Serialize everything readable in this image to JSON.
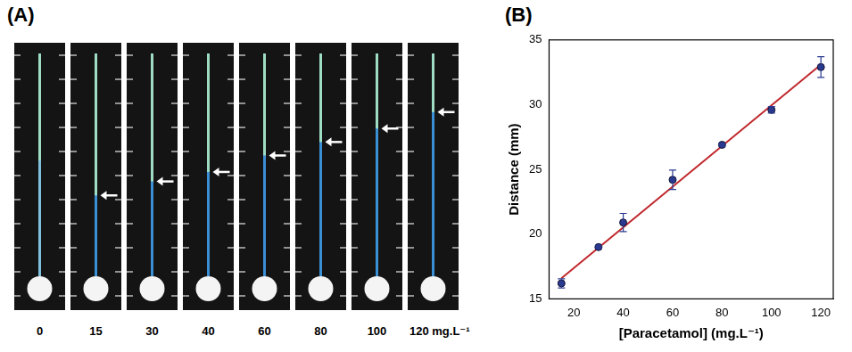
{
  "panel_letters": [
    "(A)",
    "(B)"
  ],
  "panel_a": {
    "strip_labels": [
      "0",
      "15",
      "30",
      "40",
      "60",
      "80",
      "100",
      "120 mg.L⁻¹"
    ]
  },
  "chart_data": {
    "type": "scatter",
    "x_label": "[Paracetamol] (mg.L⁻¹)",
    "y_label": "Distance (mm)",
    "series": [
      {
        "type": "scatter",
        "color": "#2b3a8f",
        "marker": "circle",
        "x": [
          15,
          30,
          40,
          60,
          80,
          100,
          120
        ],
        "values": [
          16.2,
          19.0,
          20.9,
          24.2,
          26.9,
          29.6,
          32.9
        ],
        "errors": [
          0.35,
          0.1,
          0.7,
          0.75,
          0.1,
          0.25,
          0.8
        ]
      },
      {
        "type": "line",
        "color": "#c0282d",
        "line_style": "solid",
        "x": [
          15,
          120
        ],
        "values": [
          16.6,
          33.1
        ]
      }
    ],
    "xlim": [
      10,
      125
    ],
    "xticks": [
      20,
      40,
      60,
      80,
      100,
      120
    ],
    "ylim": [
      15,
      35
    ],
    "yticks": [
      15,
      20,
      25,
      30,
      35
    ],
    "grid": false,
    "tick_labels": true
  }
}
